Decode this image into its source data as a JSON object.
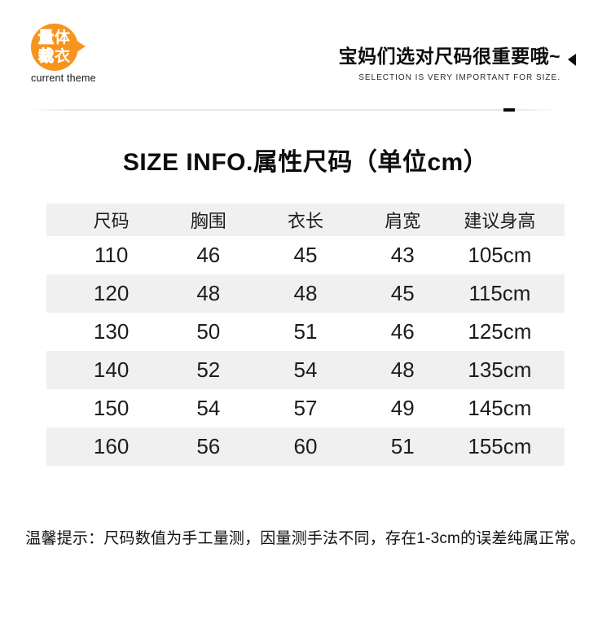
{
  "colors": {
    "accent": "#F7941E",
    "stripe": "#F0F0F0",
    "ink": "#111111"
  },
  "theme_badge": {
    "chars": {
      "c1": "量",
      "c2": "体",
      "c3": "裁",
      "c4": "衣"
    },
    "caption": "current theme"
  },
  "header_right": {
    "headline": "宝妈们选对尺码很重要哦~",
    "subline": "SELECTION IS VERY IMPORTANT FOR SIZE."
  },
  "title": "SIZE INFO.属性尺码（单位cm）",
  "size_table": {
    "columns": [
      "尺码",
      "胸围",
      "衣长",
      "肩宽",
      "建议身高"
    ],
    "rows": [
      [
        "110",
        "46",
        "45",
        "43",
        "105cm"
      ],
      [
        "120",
        "48",
        "48",
        "45",
        "115cm"
      ],
      [
        "130",
        "50",
        "51",
        "46",
        "125cm"
      ],
      [
        "140",
        "52",
        "54",
        "48",
        "135cm"
      ],
      [
        "150",
        "54",
        "57",
        "49",
        "145cm"
      ],
      [
        "160",
        "56",
        "60",
        "51",
        "155cm"
      ]
    ]
  },
  "footer_note": "温馨提示：尺码数值为手工量测，因量测手法不同，存在1-3cm的误差纯属正常。"
}
